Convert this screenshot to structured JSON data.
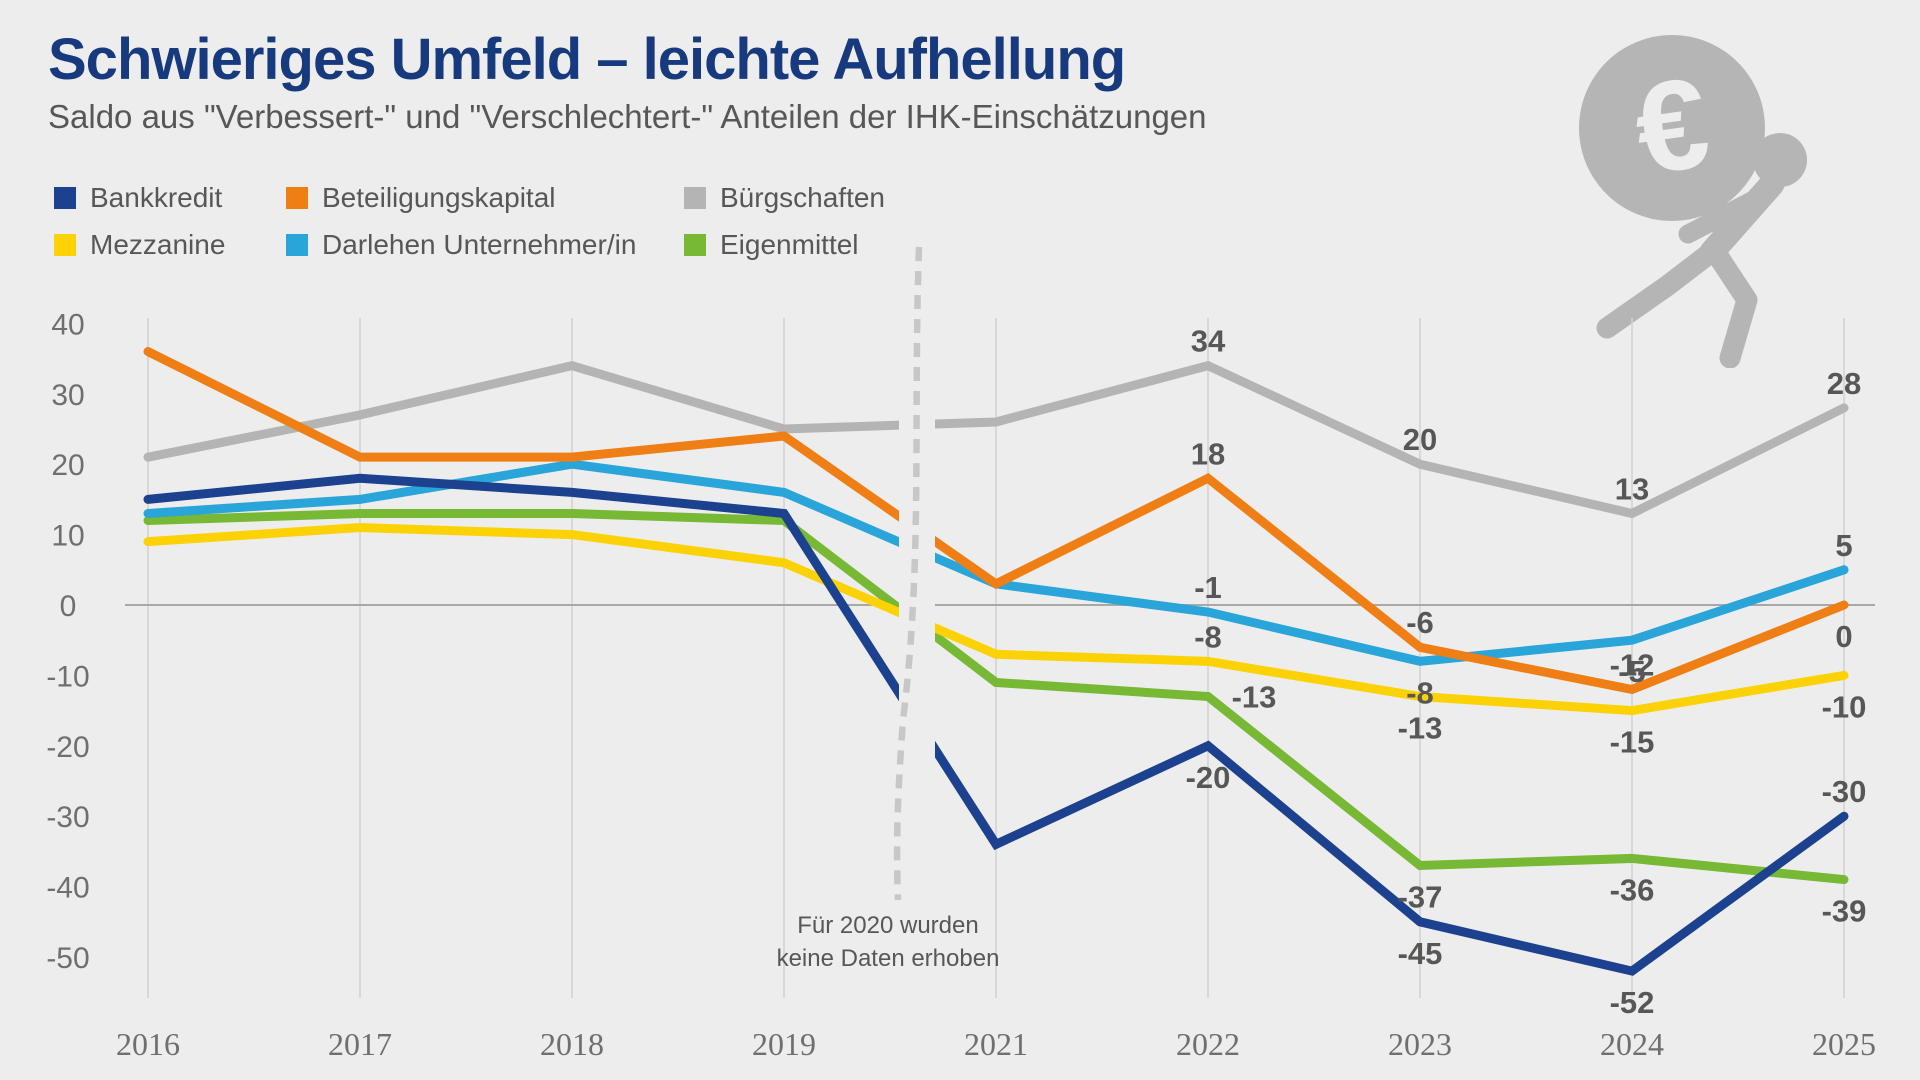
{
  "header": {
    "title": "Schwieriges Umfeld – leichte Aufhellung",
    "subtitle": "Saldo aus \"Verbessert-\" und \"Verschlechtert-\" Anteilen der IHK-Einschätzungen"
  },
  "theme": {
    "background": "#ededee",
    "title_color": "#163a7d",
    "text_color": "#575756",
    "axis_text_color": "#6f6f6e",
    "gridline_color": "#d3d3d2",
    "zero_line_color": "#a8a8a7",
    "dashed_line_color": "#c7c7c6",
    "icon_color": "#b5b5b6",
    "icon_name": "euro-carrier-icon"
  },
  "chart_data": {
    "type": "line",
    "x": [
      2016,
      2017,
      2018,
      2019,
      2021,
      2022,
      2023,
      2024,
      2025
    ],
    "ylim": [
      -50,
      40
    ],
    "yticks": [
      40,
      30,
      20,
      10,
      0,
      -10,
      -20,
      -30,
      -40,
      -50
    ],
    "grid": "vertical-only",
    "legend_position": "top-left-two-rows",
    "x_note": {
      "at_year": 2020,
      "text_lines": [
        "Für 2020 wurden",
        "keine Daten erhoben"
      ]
    },
    "series": [
      {
        "key": "bankkredit",
        "name": "Bankkredit",
        "color": "#1b418f",
        "values": [
          15,
          18,
          16,
          13,
          -34,
          -20,
          -45,
          -52,
          -30
        ],
        "point_labels": [
          {
            "year": 2022,
            "value": -20,
            "text": "-20",
            "pos": "below"
          },
          {
            "year": 2023,
            "value": -45,
            "text": "-45",
            "pos": "below"
          },
          {
            "year": 2024,
            "value": -52,
            "text": "-52",
            "pos": "below"
          },
          {
            "year": 2025,
            "value": -30,
            "text": "-30",
            "pos": "above"
          }
        ]
      },
      {
        "key": "beteiligungskapital",
        "name": "Beteiligungskapital",
        "color": "#ef7f14",
        "values": [
          36,
          21,
          21,
          24,
          3,
          18,
          -6,
          -12,
          0
        ],
        "point_labels": [
          {
            "year": 2022,
            "value": 18,
            "text": "18",
            "pos": "above"
          },
          {
            "year": 2023,
            "value": -6,
            "text": "-6",
            "pos": "above"
          },
          {
            "year": 2024,
            "value": -12,
            "text": "-12",
            "pos": "above"
          },
          {
            "year": 2025,
            "value": 0,
            "text": "0",
            "pos": "below"
          }
        ]
      },
      {
        "key": "buergschaften",
        "name": "Bürgschaften",
        "color": "#b4b4b4",
        "values": [
          21,
          27,
          34,
          25,
          26,
          34,
          20,
          13,
          28
        ],
        "point_labels": [
          {
            "year": 2022,
            "value": 34,
            "text": "34",
            "pos": "above"
          },
          {
            "year": 2023,
            "value": 20,
            "text": "20",
            "pos": "above"
          },
          {
            "year": 2024,
            "value": 13,
            "text": "13",
            "pos": "above"
          },
          {
            "year": 2025,
            "value": 28,
            "text": "28",
            "pos": "above"
          }
        ]
      },
      {
        "key": "mezzanine",
        "name": "Mezzanine",
        "color": "#fdd205",
        "values": [
          9,
          11,
          10,
          6,
          -7,
          -8,
          -13,
          -15,
          -10
        ],
        "point_labels": [
          {
            "year": 2022,
            "value": -8,
            "text": "-8",
            "pos": "above"
          },
          {
            "year": 2023,
            "value": -13,
            "text": "-13",
            "pos": "below"
          },
          {
            "year": 2024,
            "value": -15,
            "text": "-15",
            "pos": "below"
          },
          {
            "year": 2025,
            "value": -10,
            "text": "-10",
            "pos": "below"
          }
        ]
      },
      {
        "key": "darlehen",
        "name": "Darlehen Unternehmer/in",
        "color": "#29a5da",
        "values": [
          13,
          15,
          20,
          16,
          3,
          -1,
          -8,
          -5,
          5
        ],
        "point_labels": [
          {
            "year": 2022,
            "value": -1,
            "text": "-1",
            "pos": "above"
          },
          {
            "year": 2023,
            "value": -8,
            "text": "-8",
            "pos": "below"
          },
          {
            "year": 2024,
            "value": -5,
            "text": "-5",
            "pos": "below"
          },
          {
            "year": 2025,
            "value": 5,
            "text": "5",
            "pos": "above"
          }
        ]
      },
      {
        "key": "eigenmittel",
        "name": "Eigenmittel",
        "color": "#77b834",
        "values": [
          12,
          13,
          13,
          12,
          -11,
          -13,
          -37,
          -36,
          -39
        ],
        "point_labels": [
          {
            "year": 2022,
            "value": -13,
            "text": "-13",
            "pos": "right"
          },
          {
            "year": 2023,
            "value": -37,
            "text": "-37",
            "pos": "below"
          },
          {
            "year": 2024,
            "value": -36,
            "text": "-36",
            "pos": "below"
          },
          {
            "year": 2025,
            "value": -39,
            "text": "-39",
            "pos": "below"
          }
        ]
      }
    ]
  }
}
